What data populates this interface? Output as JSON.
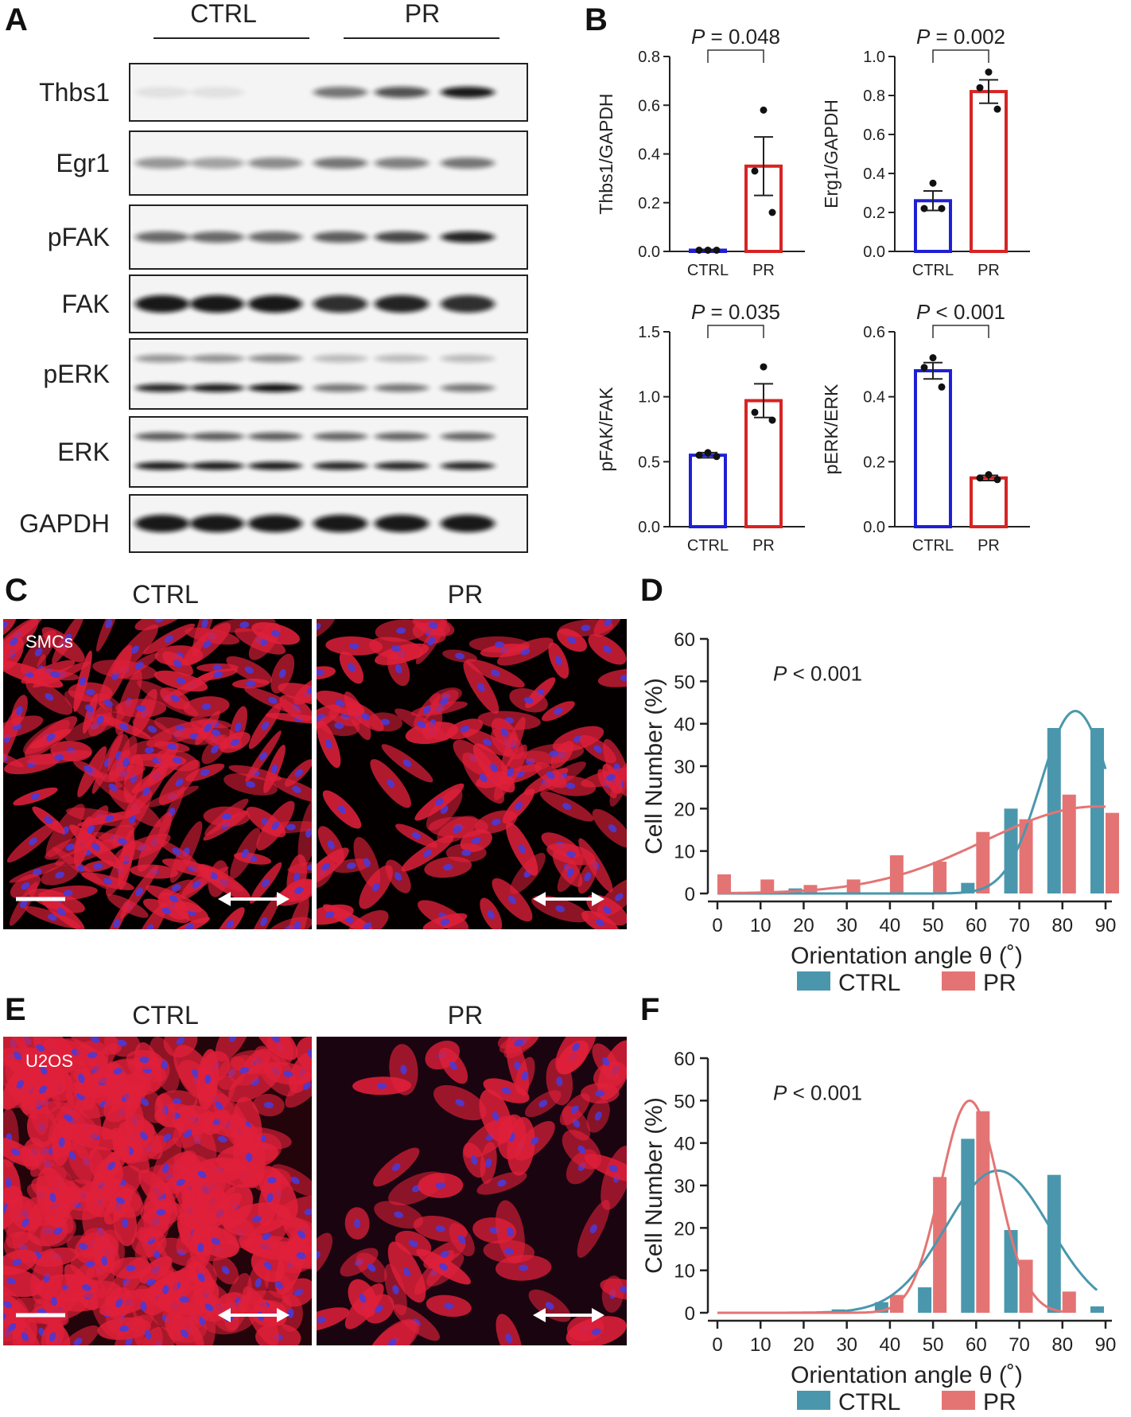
{
  "panels": {
    "a": "A",
    "b": "B",
    "c": "C",
    "d": "D",
    "e": "E",
    "f": "F"
  },
  "groups": {
    "ctrl": "CTRL",
    "pr": "PR"
  },
  "blot": {
    "rows": [
      {
        "name": "Thbs1",
        "intensity": [
          0.05,
          0.04,
          0.0,
          0.55,
          0.7,
          0.95
        ]
      },
      {
        "name": "Egr1",
        "intensity": [
          0.4,
          0.35,
          0.45,
          0.55,
          0.5,
          0.55
        ]
      },
      {
        "name": "pFAK",
        "intensity": [
          0.6,
          0.6,
          0.6,
          0.65,
          0.75,
          0.9
        ]
      },
      {
        "name": "FAK",
        "intensity": [
          0.95,
          0.95,
          0.95,
          0.85,
          0.9,
          0.85
        ]
      },
      {
        "name": "pERK",
        "intensity": [
          0.9,
          0.95,
          1.0,
          0.55,
          0.55,
          0.55
        ]
      },
      {
        "name": "ERK",
        "intensity": [
          0.95,
          0.95,
          0.95,
          0.9,
          0.9,
          0.9
        ]
      },
      {
        "name": "GAPDH",
        "intensity": [
          0.95,
          0.95,
          0.95,
          0.95,
          0.95,
          0.95
        ]
      }
    ]
  },
  "micrographs": {
    "smcs_label": "SMCs",
    "u2os_label": "U2OS"
  },
  "colors": {
    "ctrl_bar": "#1f1fd6",
    "pr_bar": "#d62424",
    "ctrl_hist": "#4a97ad",
    "pr_hist": "#e47474",
    "cell_red": "#e0203a",
    "nucleus_blue": "#4a3ad6"
  },
  "chart_data": [
    {
      "id": "B1",
      "type": "bar",
      "categories": [
        "CTRL",
        "PR"
      ],
      "ylabel": "Thbs1/GAPDH",
      "ylim": [
        0,
        0.8
      ],
      "yticks": [
        "0.0",
        "0.2",
        "0.4",
        "0.6",
        "0.8"
      ],
      "means": [
        0.005,
        0.35
      ],
      "sem": [
        0.002,
        0.12
      ],
      "points": [
        [
          0.005,
          0.005,
          0.005
        ],
        [
          0.58,
          0.33,
          0.16
        ]
      ],
      "p_prefix": "P",
      "p_suffix": " = 0.048"
    },
    {
      "id": "B2",
      "type": "bar",
      "categories": [
        "CTRL",
        "PR"
      ],
      "ylabel": "Erg1/GAPDH",
      "ylim": [
        0,
        1.0
      ],
      "yticks": [
        "0.0",
        "0.2",
        "0.4",
        "0.6",
        "0.8",
        "1.0"
      ],
      "means": [
        0.26,
        0.82
      ],
      "sem": [
        0.05,
        0.06
      ],
      "points": [
        [
          0.35,
          0.22,
          0.22
        ],
        [
          0.92,
          0.84,
          0.73
        ]
      ],
      "p_prefix": "P",
      "p_suffix": " = 0.002"
    },
    {
      "id": "B3",
      "type": "bar",
      "categories": [
        "CTRL",
        "PR"
      ],
      "ylabel": "pFAK/FAK",
      "ylim": [
        0,
        1.5
      ],
      "yticks": [
        "0.0",
        "0.5",
        "1.0",
        "1.5"
      ],
      "means": [
        0.55,
        0.97
      ],
      "sem": [
        0.02,
        0.13
      ],
      "points": [
        [
          0.57,
          0.55,
          0.54
        ],
        [
          1.23,
          0.88,
          0.82
        ]
      ],
      "p_prefix": "P",
      "p_suffix": " = 0.035"
    },
    {
      "id": "B4",
      "type": "bar",
      "categories": [
        "CTRL",
        "PR"
      ],
      "ylabel": "pERK/ERK",
      "ylim": [
        0,
        0.6
      ],
      "yticks": [
        "0.0",
        "0.2",
        "0.4",
        "0.6"
      ],
      "means": [
        0.48,
        0.15
      ],
      "sem": [
        0.025,
        0.008
      ],
      "points": [
        [
          0.52,
          0.49,
          0.43
        ],
        [
          0.16,
          0.15,
          0.145
        ]
      ],
      "p_prefix": "P",
      "p_suffix": " < 0.001"
    },
    {
      "id": "D",
      "type": "bar",
      "xlabel": "Orientation angle θ (˚)",
      "ylabel": "Cell Number (%)",
      "xlim": [
        0,
        90
      ],
      "ylim": [
        0,
        60
      ],
      "xticks": [
        "0",
        "10",
        "20",
        "30",
        "40",
        "50",
        "60",
        "70",
        "80",
        "90"
      ],
      "yticks": [
        "0",
        "10",
        "20",
        "30",
        "40",
        "50",
        "60"
      ],
      "p_prefix": "P",
      "p_suffix": " < 0.001",
      "series": [
        {
          "name": "CTRL",
          "x": [
            0,
            10,
            20,
            30,
            40,
            50,
            60,
            70,
            80,
            90
          ],
          "values": [
            0,
            0,
            1.2,
            0,
            0,
            0,
            2.5,
            20,
            39,
            39
          ]
        },
        {
          "name": "PR",
          "x": [
            0,
            10,
            20,
            30,
            40,
            50,
            60,
            70,
            80,
            90
          ],
          "values": [
            4.5,
            3.3,
            2,
            3.3,
            9,
            7.5,
            14.5,
            17.5,
            23.3,
            19
          ]
        }
      ],
      "fits": [
        {
          "series": "CTRL",
          "mu": 83,
          "sigma": 8,
          "amp": 43
        },
        {
          "series": "PR",
          "mu": 88,
          "sigma": 26,
          "amp": 20.5
        }
      ],
      "legend": "bottom"
    },
    {
      "id": "F",
      "type": "bar",
      "xlabel": "Orientation angle θ (˚)",
      "ylabel": "Cell Number (%)",
      "xlim": [
        0,
        90
      ],
      "ylim": [
        0,
        60
      ],
      "xticks": [
        "0",
        "10",
        "20",
        "30",
        "40",
        "50",
        "60",
        "70",
        "80",
        "90"
      ],
      "yticks": [
        "0",
        "10",
        "20",
        "30",
        "40",
        "50",
        "60"
      ],
      "p_prefix": "P",
      "p_suffix": " < 0.001",
      "series": [
        {
          "name": "CTRL",
          "x": [
            10,
            20,
            30,
            40,
            50,
            60,
            70,
            80,
            90
          ],
          "values": [
            0,
            0,
            0.8,
            2.5,
            6,
            41,
            19.5,
            32.5,
            1.5
          ]
        },
        {
          "name": "PR",
          "x": [
            10,
            20,
            30,
            40,
            50,
            60,
            70,
            80,
            90
          ],
          "values": [
            0,
            0,
            0,
            4.2,
            32,
            47.5,
            12.5,
            5,
            0
          ]
        }
      ],
      "fits": [
        {
          "series": "CTRL",
          "mu": 65,
          "sigma": 12,
          "amp": 33.5,
          "xmax": 88
        },
        {
          "series": "PR",
          "mu": 58.5,
          "sigma": 6.7,
          "amp": 50,
          "xmax": 80
        }
      ],
      "legend": "bottom"
    }
  ]
}
